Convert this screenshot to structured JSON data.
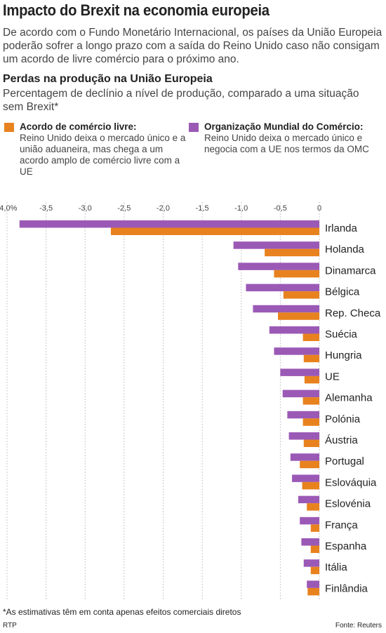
{
  "header": {
    "title": "Impacto do Brexit na economia europeia",
    "intro": "De acordo com o Fundo Monetário Internacional, os países da União Europeia poderão sofrer a longo prazo com a saída do Reino Unido caso não consigam um acordo de livre comércio para o próximo ano."
  },
  "chart_header": {
    "title": "Perdas na produção na União Europeia",
    "subtitle": "Percentagem de declínio a nível de produção, comparado a uma situação sem Brexit*"
  },
  "legend": [
    {
      "name": "Acordo de comércio livre:",
      "description": "Reino Unido deixa o mercado único e a união aduaneira, mas chega a um acordo amplo de comércio livre com a UE",
      "color": "#E8821E"
    },
    {
      "name": "Organização Mundial do Comércio:",
      "description": "Reino Unido deixa o mercado único e negocia com a UE nos termos da OMC",
      "color": "#9B59B6"
    }
  ],
  "chart_data": {
    "type": "bar",
    "orientation": "horizontal",
    "categories": [
      "Irlanda",
      "Holanda",
      "Dinamarca",
      "Bélgica",
      "Rep. Checa",
      "Suécia",
      "Hungria",
      "UE",
      "Alemanha",
      "Polónia",
      "Áustria",
      "Portugal",
      "Eslováquia",
      "Eslovénia",
      "França",
      "Espanha",
      "Itália",
      "Finlândia"
    ],
    "series": [
      {
        "name": "Organização Mundial do Comércio",
        "color": "#9B59B6",
        "values": [
          -3.84,
          -1.1,
          -1.04,
          -0.94,
          -0.85,
          -0.64,
          -0.58,
          -0.5,
          -0.47,
          -0.41,
          -0.39,
          -0.37,
          -0.35,
          -0.27,
          -0.25,
          -0.23,
          -0.2,
          -0.16
        ]
      },
      {
        "name": "Acordo de comércio livre",
        "color": "#E8821E",
        "values": [
          -2.67,
          -0.7,
          -0.58,
          -0.46,
          -0.53,
          -0.21,
          -0.2,
          -0.19,
          -0.21,
          -0.21,
          -0.2,
          -0.25,
          -0.22,
          -0.16,
          -0.11,
          -0.11,
          -0.11,
          -0.15
        ]
      }
    ],
    "xticks": [
      -4.0,
      -3.5,
      -3.0,
      -2.5,
      -2.0,
      -1.5,
      -1.0,
      -0.5,
      0
    ],
    "xtick_labels": [
      "-4,0%",
      "-3,5",
      "-3,0",
      "-2,5",
      "-2,0",
      "-1,5",
      "-1,0",
      "-0,5",
      "0"
    ],
    "xlim": [
      -4.0,
      0
    ],
    "grid": "vertical dashed"
  },
  "footer": {
    "footnote": "*As estimativas têm em conta apenas efeitos comerciais diretos",
    "credit": "RTP",
    "source": "Fonte: Reuters"
  }
}
